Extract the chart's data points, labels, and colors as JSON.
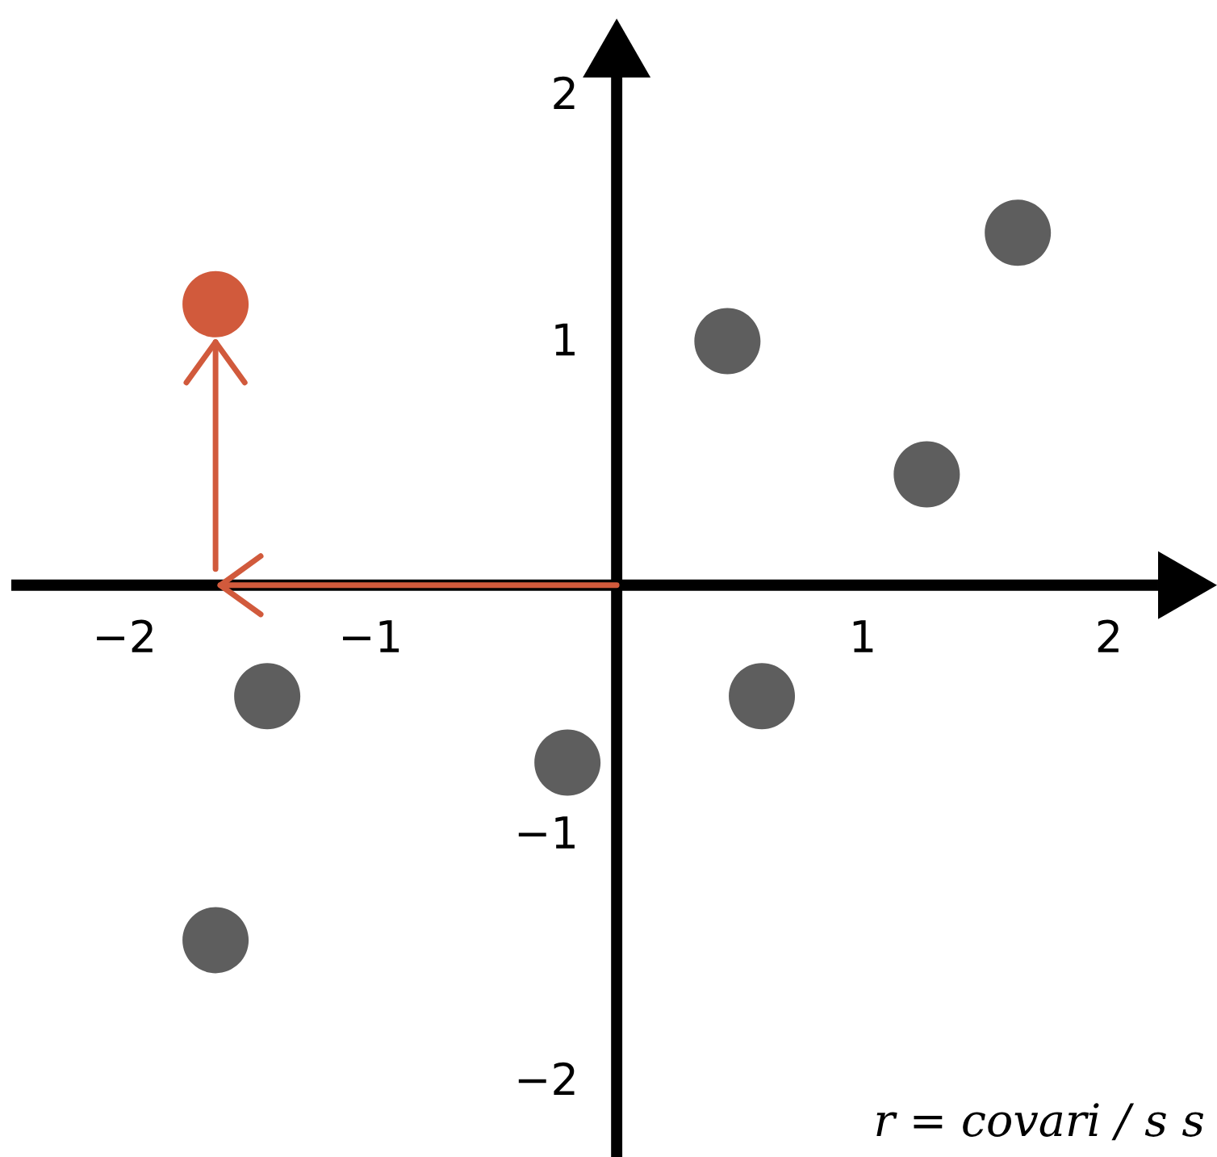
{
  "chart_data": {
    "type": "scatter",
    "xlim": [
      -2.46,
      2.2
    ],
    "ylim": [
      -2.32,
      2.06
    ],
    "xticks": [
      {
        "value": -2,
        "label": "−2"
      },
      {
        "value": -1,
        "label": "−1"
      },
      1,
      2
    ],
    "yticks": [
      {
        "value": -2,
        "label": "−2"
      },
      {
        "value": -1,
        "label": "−1"
      },
      1,
      2
    ],
    "marker": "circle",
    "series": [
      {
        "color": "#5e5e5e",
        "x": [
          1.63,
          0.45,
          1.26,
          -1.42,
          0.59,
          -0.2,
          -1.63
        ],
        "values": [
          1.43,
          0.99,
          0.45,
          -0.45,
          -0.45,
          -0.72,
          -1.44
        ]
      },
      {
        "color": "#d15a3c",
        "x": [
          -1.63
        ],
        "values": [
          1.14
        ]
      }
    ],
    "annotations": [
      "r = covari / s s"
    ]
  }
}
